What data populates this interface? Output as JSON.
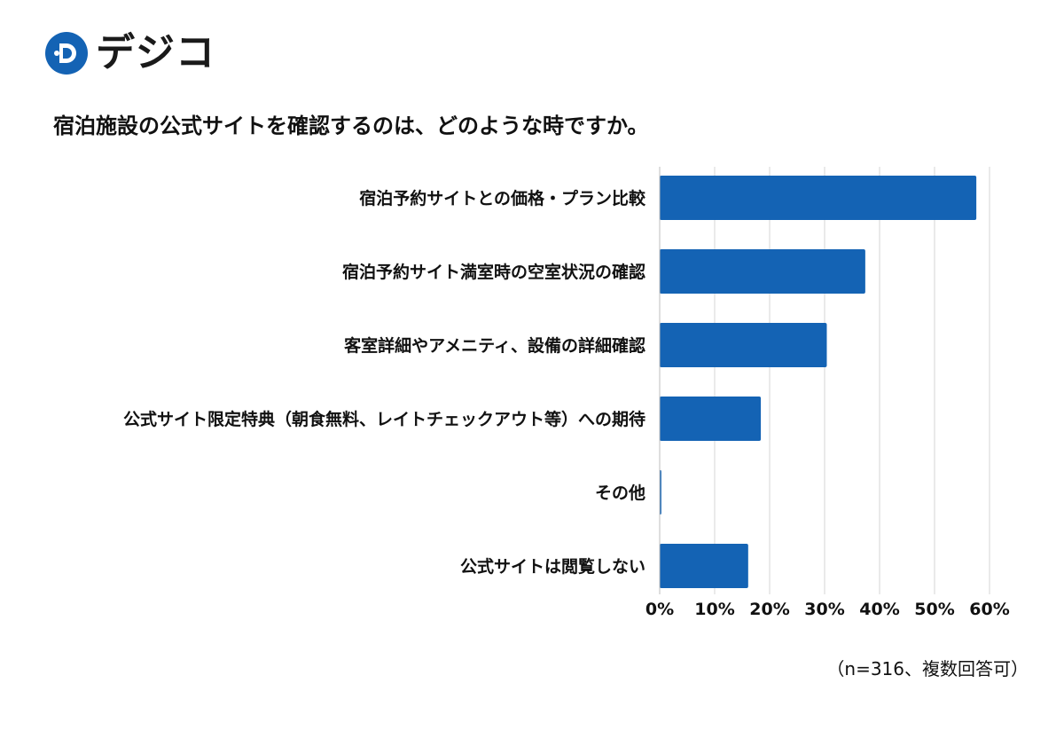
{
  "brand": {
    "name": "デジコ",
    "primary_color": "#1463b4",
    "accent_color": "#17a3c8"
  },
  "chart_data": {
    "type": "bar",
    "orientation": "horizontal",
    "title": "宿泊施設の公式サイトを確認するのは、どのような時ですか。",
    "categories": [
      "宿泊予約サイトとの価格・プラン比較",
      "宿泊予約サイト満室時の空室状況の確認",
      "客室詳細やアメニティ、設備の詳細確認",
      "公式サイト限定特典（朝食無料、レイトチェックアウト等）への期待",
      "その他",
      "公式サイトは閲覧しない"
    ],
    "values": [
      57.6,
      37.4,
      30.4,
      18.4,
      0.3,
      16.1
    ],
    "unit": "%",
    "xlim": [
      0,
      60
    ],
    "xticks": [
      "0%",
      "10%",
      "20%",
      "30%",
      "40%",
      "50%",
      "60%"
    ],
    "grid": true,
    "bar_color": "#1463b4",
    "note": "（n=316、複数回答可）"
  }
}
